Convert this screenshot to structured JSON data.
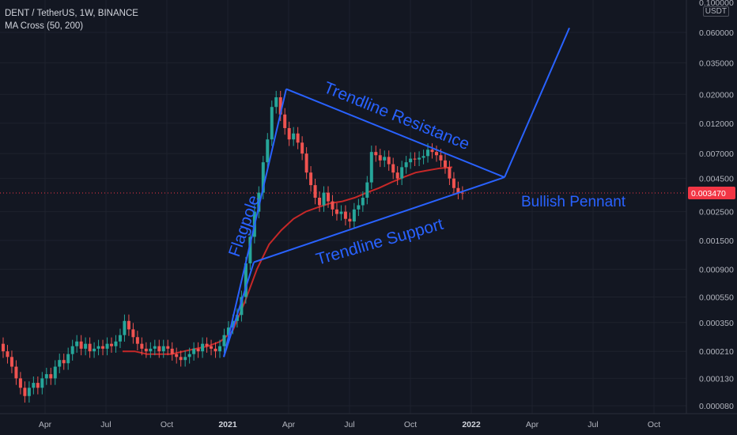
{
  "legend": {
    "symbol_line": "DENT / TetherUS, 1W, BINANCE",
    "indicator": "MA Cross (50, 200)"
  },
  "price_axis": {
    "unit": "USDT",
    "top_partial": "0.100000"
  },
  "last_price": "0.003470",
  "chart_data": {
    "type": "candlestick",
    "scale": "log",
    "timeframe": "1W",
    "y_ticks": [
      "0.060000",
      "0.035000",
      "0.020000",
      "0.012000",
      "0.007000",
      "0.004500",
      "0.002500",
      "0.001500",
      "0.000900",
      "0.000550",
      "0.000350",
      "0.000210",
      "0.000130",
      "0.000080"
    ],
    "x_ticks": [
      {
        "label": "Apr",
        "date": "2020-04",
        "bold": false
      },
      {
        "label": "Jul",
        "date": "2020-07",
        "bold": false
      },
      {
        "label": "Oct",
        "date": "2020-10",
        "bold": false
      },
      {
        "label": "2021",
        "date": "2021-01",
        "bold": true
      },
      {
        "label": "Apr",
        "date": "2021-04",
        "bold": false
      },
      {
        "label": "Jul",
        "date": "2021-07",
        "bold": false
      },
      {
        "label": "Oct",
        "date": "2021-10",
        "bold": false
      },
      {
        "label": "2022",
        "date": "2022-01",
        "bold": true
      },
      {
        "label": "Apr",
        "date": "2022-04",
        "bold": false
      },
      {
        "label": "Jul",
        "date": "2022-07",
        "bold": false
      },
      {
        "label": "Oct",
        "date": "2022-10",
        "bold": false
      }
    ],
    "candle_closes": [
      0.00021,
      0.00019,
      0.00016,
      0.00013,
      0.00011,
      9.5e-05,
      0.00011,
      0.00012,
      0.00011,
      0.00013,
      0.00014,
      0.00013,
      0.00016,
      0.00018,
      0.00017,
      0.0002,
      0.00023,
      0.00025,
      0.00022,
      0.00024,
      0.00021,
      0.00022,
      0.00023,
      0.00022,
      0.00024,
      0.00023,
      0.00025,
      0.00028,
      0.00036,
      0.00031,
      0.00027,
      0.00024,
      0.00022,
      0.00021,
      0.00022,
      0.00023,
      0.00021,
      0.00023,
      0.00022,
      0.0002,
      0.00019,
      0.00018,
      0.00019,
      0.0002,
      0.00022,
      0.00021,
      0.00024,
      0.00023,
      0.00022,
      0.00021,
      0.00023,
      0.00028,
      0.00032,
      0.00036,
      0.0004,
      0.00055,
      0.001,
      0.0016,
      0.0025,
      0.0035,
      0.006,
      0.009,
      0.016,
      0.019,
      0.014,
      0.011,
      0.009,
      0.01,
      0.0085,
      0.007,
      0.005,
      0.004,
      0.0032,
      0.0028,
      0.0035,
      0.003,
      0.0026,
      0.0024,
      0.0025,
      0.0022,
      0.0021,
      0.0026,
      0.0028,
      0.0032,
      0.0042,
      0.0072,
      0.0068,
      0.0062,
      0.0066,
      0.0058,
      0.005,
      0.0045,
      0.0055,
      0.006,
      0.0064,
      0.0063,
      0.0065,
      0.0067,
      0.0075,
      0.0072,
      0.0068,
      0.0062,
      0.0055,
      0.0045,
      0.0038,
      0.0035,
      0.00347
    ],
    "ma_50": [
      0.00021,
      0.00021,
      0.0002,
      0.0002,
      0.0002,
      0.00021,
      0.00022,
      0.00023,
      0.00025,
      0.0003,
      0.0005,
      0.0009,
      0.0014,
      0.0018,
      0.0022,
      0.0025,
      0.0027,
      0.0029,
      0.003,
      0.0032,
      0.0035,
      0.0038,
      0.0042,
      0.0046,
      0.005,
      0.0052,
      0.0054,
      0.0055
    ],
    "annotations": [
      {
        "text": "Flagpole"
      },
      {
        "text": "Trendline Resistance"
      },
      {
        "text": "Trendline Support"
      },
      {
        "text": "Bullish Pennant"
      }
    ],
    "colors": {
      "up": "#26a69a",
      "down": "#ef5350",
      "ma": "#c62828",
      "drawing": "#2962ff",
      "last_price": "#f23645"
    }
  }
}
